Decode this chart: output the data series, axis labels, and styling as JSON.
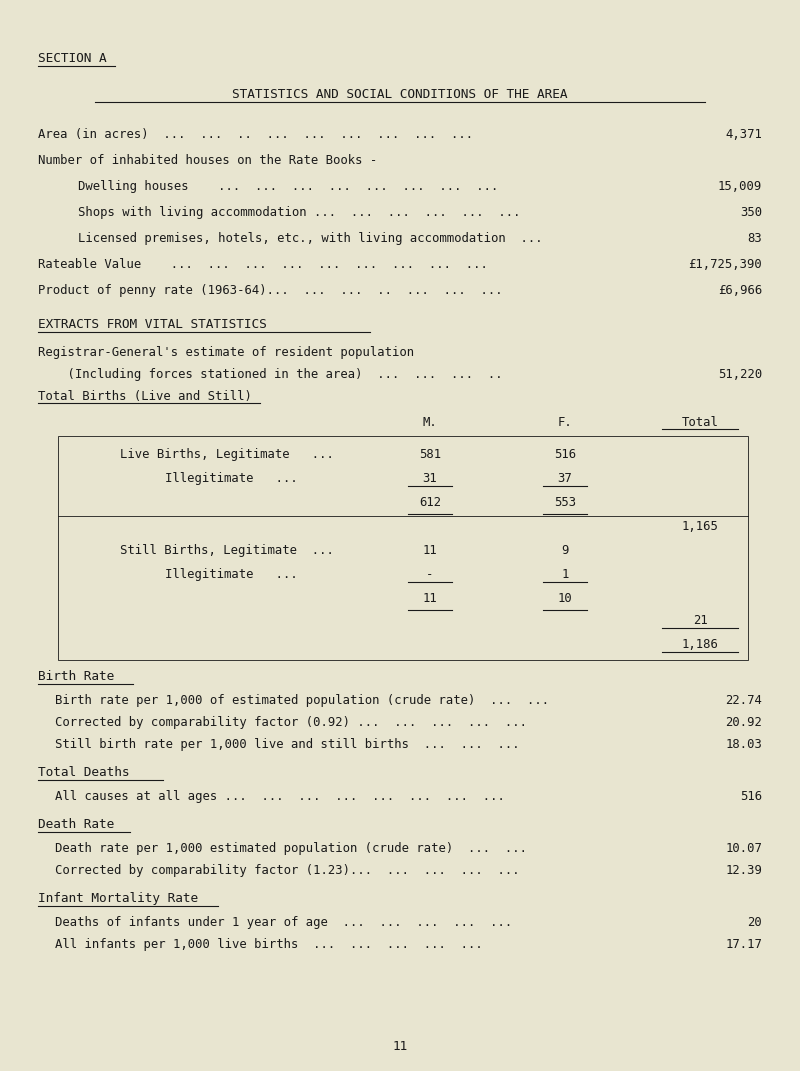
{
  "bg_color": "#e8e5d0",
  "text_color": "#1a1a1a",
  "page_title": "SECTION A",
  "main_title": "STATISTICS AND SOCIAL CONDITIONS OF THE AREA",
  "page_number": "11",
  "section1_lines": [
    {
      "label": "Area (in acres)  ...  ...  ..  ...  ...  ...  ...  ...  ...",
      "value": "4,371",
      "indent": 0
    },
    {
      "label": "Number of inhabited houses on the Rate Books -",
      "value": "",
      "indent": 0
    },
    {
      "label": "Dwelling houses    ...  ...  ...  ...  ...  ...  ...  ...",
      "value": "15,009",
      "indent": 1
    },
    {
      "label": "Shops with living accommodation ...  ...  ...  ...  ...  ...",
      "value": "350",
      "indent": 1
    },
    {
      "label": "Licensed premises, hotels, etc., with living accommodation  ...",
      "value": "83",
      "indent": 1
    },
    {
      "label": "Rateable Value    ...  ...  ...  ...  ...  ...  ...  ...  ...",
      "value": "£1,725,390",
      "indent": 0
    },
    {
      "label": "Product of penny rate (1963-64)...  ...  ...  ..  ...  ...  ...",
      "value": "£6,966",
      "indent": 0
    }
  ],
  "section2_title": "EXTRACTS FROM VITAL STATISTICS",
  "pop_label": "Registrar-General's estimate of resident population",
  "pop_sublabel": "    (Including forces stationed in the area)  ...  ...  ...  ..",
  "pop_value": "51,220",
  "births_title": "Total Births (Live and Still)",
  "col_headers": [
    "M.",
    "F.",
    "Total"
  ],
  "birth_rate_title": "Birth Rate",
  "birth_rate_lines": [
    {
      "label": "Birth rate per 1,000 of estimated population (crude rate)  ...  ...",
      "value": "22.74"
    },
    {
      "label": "Corrected by comparability factor (0.92) ...  ...  ...  ...  ...",
      "value": "20.92"
    },
    {
      "label": "Still birth rate per 1,000 live and still births  ...  ...  ...",
      "value": "18.03"
    }
  ],
  "total_deaths_title": "Total Deaths",
  "total_deaths_lines": [
    {
      "label": "All causes at all ages ...  ...  ...  ...  ...  ...  ...  ...",
      "value": "516"
    }
  ],
  "death_rate_title": "Death Rate",
  "death_rate_lines": [
    {
      "label": "Death rate per 1,000 estimated population (crude rate)  ...  ...",
      "value": "10.07"
    },
    {
      "label": "Corrected by comparability factor (1.23)...  ...  ...  ...  ...",
      "value": "12.39"
    }
  ],
  "infant_title": "Infant Mortality Rate",
  "infant_lines": [
    {
      "label": "Deaths of infants under 1 year of age  ...  ...  ...  ...  ...",
      "value": "20"
    },
    {
      "label": "All infants per 1,000 live births  ...  ...  ...  ...  ...",
      "value": "17.17"
    }
  ]
}
